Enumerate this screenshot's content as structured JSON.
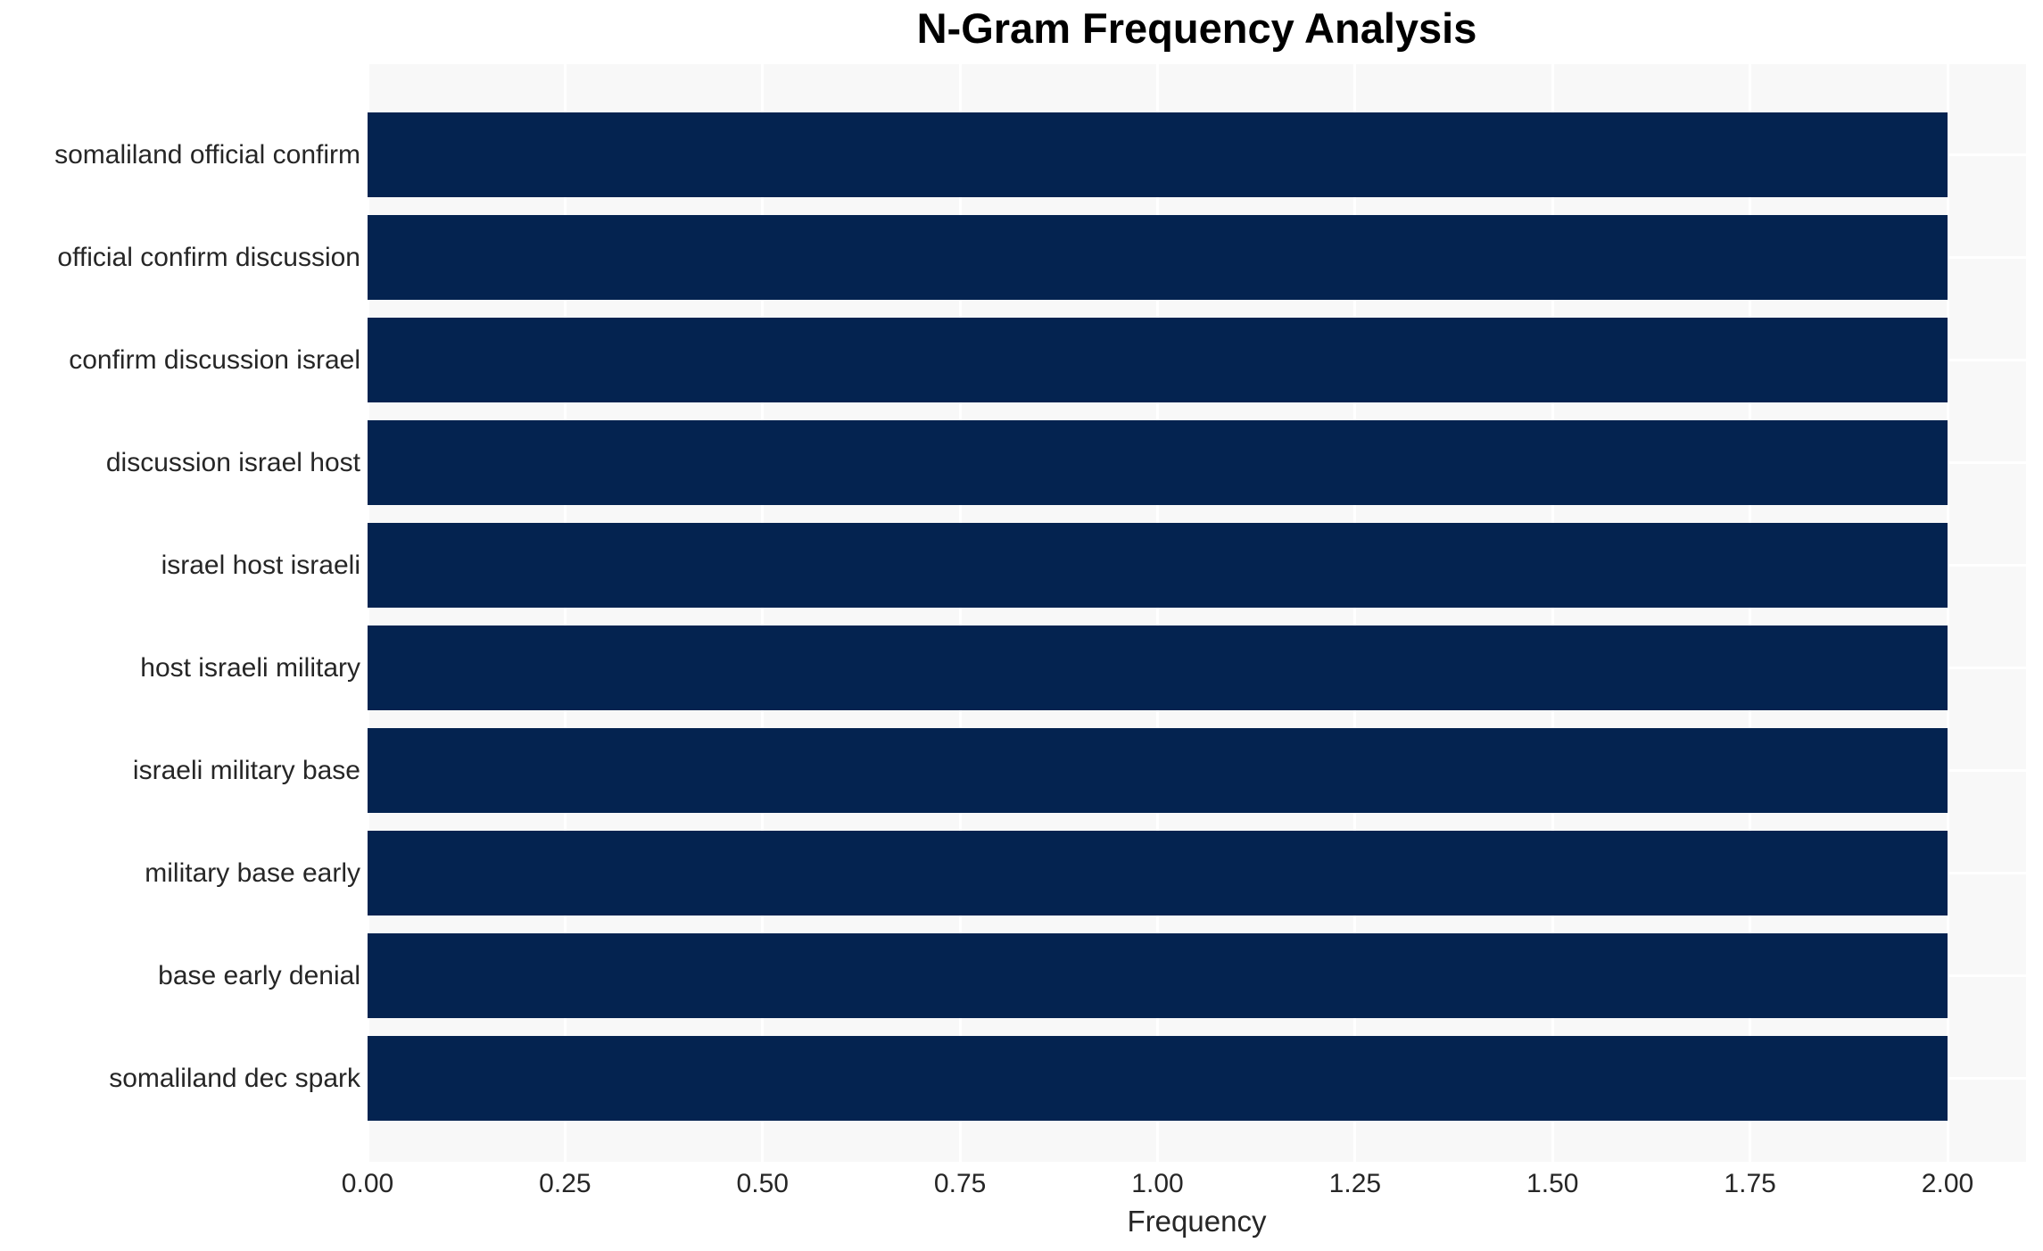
{
  "chart_data": {
    "type": "bar",
    "orientation": "horizontal",
    "title": "N-Gram Frequency Analysis",
    "xlabel": "Frequency",
    "ylabel": "",
    "categories": [
      "somaliland official confirm",
      "official confirm discussion",
      "confirm discussion israel",
      "discussion israel host",
      "israel host israeli",
      "host israeli military",
      "israeli military base",
      "military base early",
      "base early denial",
      "somaliland dec spark"
    ],
    "values": [
      2,
      2,
      2,
      2,
      2,
      2,
      2,
      2,
      2,
      2
    ],
    "xlim": [
      0,
      2.1
    ],
    "xtick_values": [
      0,
      0.25,
      0.5,
      0.75,
      1,
      1.25,
      1.5,
      1.75,
      2
    ],
    "xtick_labels": [
      "0.00",
      "0.25",
      "0.50",
      "0.75",
      "1.00",
      "1.25",
      "1.50",
      "1.75",
      "2.00"
    ],
    "legend": null,
    "grid": {
      "vertical_major_x": true,
      "horizontal_category": true
    }
  },
  "colors": {
    "bar_fill": "#042350",
    "panel_bg": "#f8f8f8",
    "grid_line": "#ffffff",
    "axis_text": "#262626",
    "title_text": "#000000",
    "page_bg": "#ffffff"
  }
}
